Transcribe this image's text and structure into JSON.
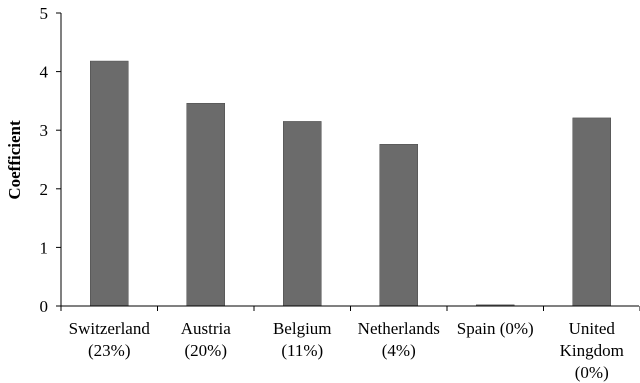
{
  "chart_data": {
    "type": "bar",
    "title": "",
    "xlabel": "",
    "ylabel": "Coefficient",
    "ylim": [
      0,
      5
    ],
    "yticks": [
      0,
      1,
      2,
      3,
      4,
      5
    ],
    "grid": false,
    "legend": "none",
    "bar_color": "#6b6b6b",
    "categories": [
      {
        "lines": [
          "Switzerland",
          "(23%)"
        ]
      },
      {
        "lines": [
          "Austria",
          "(20%)"
        ]
      },
      {
        "lines": [
          "Belgium",
          "(11%)"
        ]
      },
      {
        "lines": [
          "Netherlands",
          "(4%)"
        ]
      },
      {
        "lines": [
          "Spain (0%)"
        ]
      },
      {
        "lines": [
          "United",
          "Kingdom",
          "(0%)"
        ]
      }
    ],
    "values": [
      4.18,
      3.46,
      3.15,
      2.76,
      0.02,
      3.21
    ]
  }
}
